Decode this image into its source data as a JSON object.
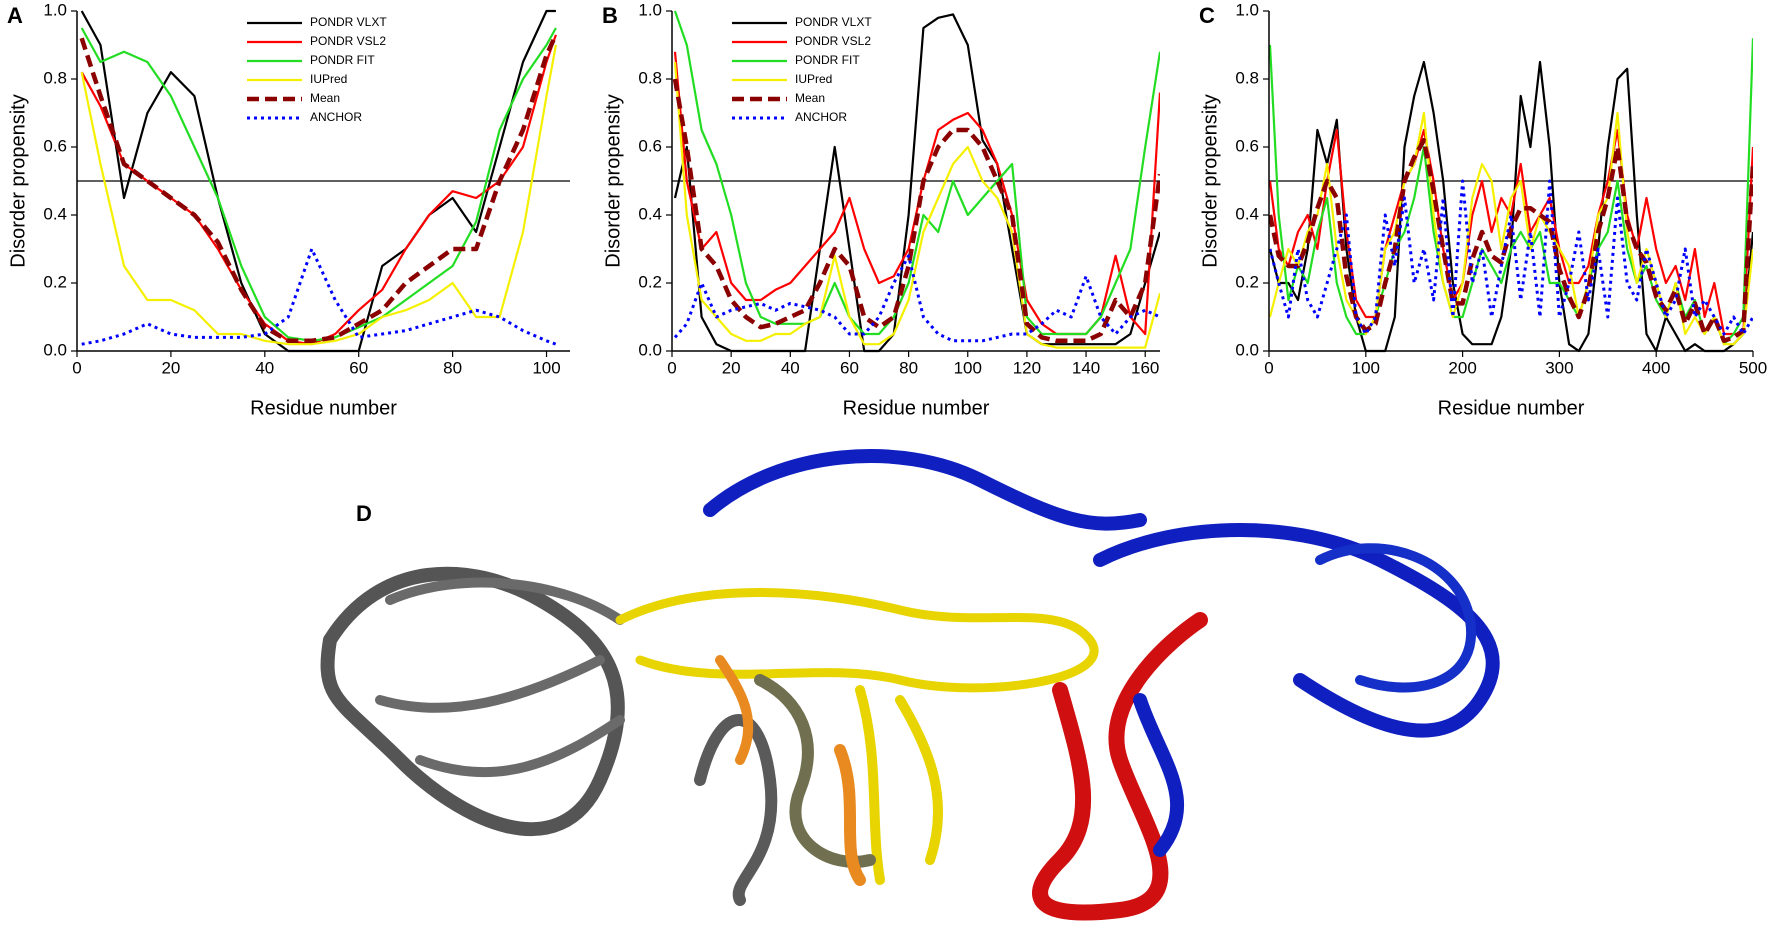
{
  "chart_data": [
    {
      "type": "line",
      "label": "A",
      "x_label": "Residue number",
      "y_label": "Disorder propensity",
      "xlim": [
        0,
        105
      ],
      "ylim": [
        0,
        1
      ],
      "xticks": [
        0,
        20,
        40,
        60,
        80,
        100
      ],
      "yticks": [
        {
          "value": 0,
          "label": "0.0"
        },
        0.2,
        0.4,
        0.6,
        0.8,
        {
          "value": 1,
          "label": "1.0"
        }
      ],
      "threshold": 0.5,
      "legend": "upper center",
      "x": [
        1,
        5,
        10,
        15,
        20,
        25,
        30,
        35,
        40,
        45,
        50,
        55,
        60,
        65,
        70,
        75,
        80,
        85,
        90,
        95,
        100,
        102
      ],
      "series": [
        {
          "name": "PONDR VLXT",
          "color": "#000000",
          "line_style": "solid",
          "values": [
            1.0,
            0.9,
            0.45,
            0.7,
            0.82,
            0.75,
            0.45,
            0.2,
            0.05,
            0.0,
            0.0,
            0.0,
            0.0,
            0.25,
            0.3,
            0.4,
            0.45,
            0.35,
            0.6,
            0.85,
            1.0,
            1.0
          ]
        },
        {
          "name": "PONDR VSL2",
          "color": "#ff0000",
          "line_style": "solid",
          "values": [
            0.82,
            0.72,
            0.55,
            0.5,
            0.45,
            0.4,
            0.3,
            0.18,
            0.08,
            0.03,
            0.02,
            0.05,
            0.12,
            0.18,
            0.3,
            0.4,
            0.47,
            0.45,
            0.5,
            0.6,
            0.85,
            0.93
          ]
        },
        {
          "name": "PONDR FIT",
          "color": "#22dd22",
          "line_style": "solid",
          "values": [
            0.95,
            0.85,
            0.88,
            0.85,
            0.75,
            0.6,
            0.45,
            0.25,
            0.1,
            0.04,
            0.03,
            0.04,
            0.07,
            0.1,
            0.15,
            0.2,
            0.25,
            0.38,
            0.65,
            0.8,
            0.9,
            0.95
          ]
        },
        {
          "name": "IUPred",
          "color": "#f5f000",
          "line_style": "solid",
          "values": [
            0.82,
            0.55,
            0.25,
            0.15,
            0.15,
            0.12,
            0.05,
            0.05,
            0.03,
            0.02,
            0.02,
            0.03,
            0.05,
            0.1,
            0.12,
            0.15,
            0.2,
            0.1,
            0.1,
            0.35,
            0.75,
            0.9
          ]
        },
        {
          "name": "Mean",
          "color": "#8b0000",
          "line_style": "dashed",
          "values": [
            0.92,
            0.75,
            0.55,
            0.5,
            0.45,
            0.4,
            0.32,
            0.18,
            0.07,
            0.03,
            0.03,
            0.04,
            0.08,
            0.12,
            0.2,
            0.25,
            0.3,
            0.3,
            0.5,
            0.65,
            0.87,
            0.93
          ]
        },
        {
          "name": "ANCHOR",
          "color": "#0000ff",
          "line_style": "dotted",
          "values": [
            0.02,
            0.03,
            0.05,
            0.08,
            0.05,
            0.04,
            0.04,
            0.04,
            0.05,
            0.1,
            0.3,
            0.15,
            0.04,
            0.05,
            0.06,
            0.08,
            0.1,
            0.12,
            0.1,
            0.06,
            0.03,
            0.02
          ]
        }
      ]
    },
    {
      "type": "line",
      "label": "B",
      "x_label": "Residue number",
      "y_label": "Disorder propensity",
      "xlim": [
        0,
        165
      ],
      "ylim": [
        0,
        1
      ],
      "xticks": [
        0,
        20,
        40,
        60,
        80,
        100,
        120,
        140,
        160
      ],
      "yticks": [
        {
          "value": 0,
          "label": "0.0"
        },
        0.2,
        0.4,
        0.6,
        0.8,
        {
          "value": 1,
          "label": "1.0"
        }
      ],
      "threshold": 0.5,
      "legend": "upper left",
      "x": [
        1,
        5,
        10,
        15,
        20,
        25,
        30,
        35,
        40,
        45,
        50,
        55,
        60,
        65,
        70,
        75,
        80,
        85,
        90,
        95,
        100,
        105,
        110,
        115,
        120,
        125,
        130,
        135,
        140,
        145,
        150,
        155,
        160,
        165
      ],
      "series": [
        {
          "name": "PONDR VLXT",
          "color": "#000000",
          "line_style": "solid",
          "values": [
            0.45,
            0.6,
            0.1,
            0.02,
            0.0,
            0.0,
            0.0,
            0.0,
            0.0,
            0.0,
            0.3,
            0.6,
            0.3,
            0.0,
            0.0,
            0.05,
            0.4,
            0.95,
            0.98,
            0.99,
            0.9,
            0.62,
            0.55,
            0.3,
            0.05,
            0.02,
            0.02,
            0.02,
            0.02,
            0.02,
            0.02,
            0.05,
            0.2,
            0.35
          ]
        },
        {
          "name": "PONDR VSL2",
          "color": "#ff0000",
          "line_style": "solid",
          "values": [
            0.88,
            0.5,
            0.3,
            0.35,
            0.2,
            0.15,
            0.15,
            0.18,
            0.2,
            0.25,
            0.3,
            0.35,
            0.45,
            0.3,
            0.2,
            0.22,
            0.3,
            0.5,
            0.65,
            0.68,
            0.7,
            0.65,
            0.55,
            0.4,
            0.15,
            0.08,
            0.05,
            0.05,
            0.05,
            0.1,
            0.28,
            0.1,
            0.05,
            0.76
          ]
        },
        {
          "name": "PONDR FIT",
          "color": "#22dd22",
          "line_style": "solid",
          "values": [
            1.0,
            0.9,
            0.65,
            0.55,
            0.4,
            0.2,
            0.1,
            0.08,
            0.08,
            0.08,
            0.1,
            0.2,
            0.1,
            0.05,
            0.05,
            0.1,
            0.2,
            0.4,
            0.35,
            0.5,
            0.4,
            0.45,
            0.5,
            0.55,
            0.1,
            0.05,
            0.05,
            0.05,
            0.05,
            0.1,
            0.2,
            0.3,
            0.6,
            0.88
          ]
        },
        {
          "name": "IUPred",
          "color": "#f5f000",
          "line_style": "solid",
          "values": [
            0.85,
            0.4,
            0.15,
            0.1,
            0.05,
            0.03,
            0.03,
            0.05,
            0.05,
            0.08,
            0.1,
            0.28,
            0.1,
            0.02,
            0.02,
            0.05,
            0.15,
            0.35,
            0.45,
            0.55,
            0.6,
            0.5,
            0.45,
            0.35,
            0.05,
            0.02,
            0.01,
            0.01,
            0.01,
            0.01,
            0.01,
            0.01,
            0.01,
            0.17
          ]
        },
        {
          "name": "Mean",
          "color": "#8b0000",
          "line_style": "dashed",
          "values": [
            0.8,
            0.6,
            0.3,
            0.25,
            0.15,
            0.1,
            0.07,
            0.08,
            0.1,
            0.12,
            0.2,
            0.3,
            0.25,
            0.1,
            0.07,
            0.1,
            0.25,
            0.5,
            0.6,
            0.65,
            0.65,
            0.6,
            0.5,
            0.4,
            0.08,
            0.04,
            0.03,
            0.03,
            0.03,
            0.05,
            0.15,
            0.1,
            0.2,
            0.52
          ]
        },
        {
          "name": "ANCHOR",
          "color": "#0000ff",
          "line_style": "dotted",
          "values": [
            0.04,
            0.08,
            0.2,
            0.1,
            0.12,
            0.13,
            0.14,
            0.12,
            0.14,
            0.13,
            0.12,
            0.1,
            0.05,
            0.05,
            0.1,
            0.2,
            0.28,
            0.1,
            0.05,
            0.03,
            0.03,
            0.03,
            0.04,
            0.05,
            0.05,
            0.08,
            0.12,
            0.1,
            0.22,
            0.1,
            0.05,
            0.1,
            0.12,
            0.1
          ]
        }
      ]
    },
    {
      "type": "line",
      "label": "C",
      "x_label": "Residue number",
      "y_label": "Disorder propensity",
      "xlim": [
        0,
        500
      ],
      "ylim": [
        0,
        1
      ],
      "xticks": [
        0,
        100,
        200,
        300,
        400,
        500
      ],
      "yticks": [
        {
          "value": 0,
          "label": "0.0"
        },
        0.2,
        0.4,
        0.6,
        0.8,
        {
          "value": 1,
          "label": "1.0"
        }
      ],
      "threshold": 0.5,
      "x": [
        1,
        10,
        20,
        30,
        40,
        50,
        60,
        70,
        80,
        90,
        100,
        110,
        120,
        130,
        140,
        150,
        160,
        170,
        180,
        190,
        200,
        210,
        220,
        230,
        240,
        250,
        260,
        270,
        280,
        290,
        300,
        310,
        320,
        330,
        340,
        350,
        360,
        370,
        380,
        390,
        400,
        410,
        420,
        430,
        440,
        450,
        460,
        470,
        480,
        490,
        500
      ],
      "series": [
        {
          "color": "#000000",
          "line_style": "solid",
          "values": [
            0.3,
            0.2,
            0.2,
            0.15,
            0.3,
            0.65,
            0.55,
            0.68,
            0.3,
            0.1,
            0.0,
            0.0,
            0.0,
            0.1,
            0.6,
            0.75,
            0.85,
            0.7,
            0.5,
            0.2,
            0.05,
            0.02,
            0.02,
            0.02,
            0.1,
            0.3,
            0.75,
            0.6,
            0.85,
            0.6,
            0.2,
            0.02,
            0.0,
            0.05,
            0.3,
            0.6,
            0.8,
            0.83,
            0.4,
            0.05,
            0.0,
            0.1,
            0.05,
            0.0,
            0.02,
            0.0,
            0.0,
            0.0,
            0.02,
            0.05,
            0.35
          ]
        },
        {
          "color": "#ff0000",
          "line_style": "solid",
          "values": [
            0.5,
            0.3,
            0.25,
            0.35,
            0.4,
            0.3,
            0.5,
            0.65,
            0.35,
            0.15,
            0.1,
            0.1,
            0.3,
            0.4,
            0.5,
            0.55,
            0.65,
            0.5,
            0.3,
            0.15,
            0.2,
            0.4,
            0.5,
            0.35,
            0.45,
            0.4,
            0.55,
            0.35,
            0.4,
            0.45,
            0.3,
            0.2,
            0.2,
            0.25,
            0.4,
            0.5,
            0.65,
            0.4,
            0.3,
            0.45,
            0.3,
            0.2,
            0.25,
            0.15,
            0.3,
            0.1,
            0.2,
            0.05,
            0.05,
            0.05,
            0.6
          ]
        },
        {
          "color": "#22dd22",
          "line_style": "solid",
          "values": [
            0.9,
            0.4,
            0.15,
            0.25,
            0.2,
            0.35,
            0.45,
            0.2,
            0.1,
            0.05,
            0.05,
            0.1,
            0.2,
            0.3,
            0.35,
            0.45,
            0.6,
            0.35,
            0.2,
            0.1,
            0.1,
            0.2,
            0.3,
            0.25,
            0.2,
            0.3,
            0.35,
            0.3,
            0.35,
            0.2,
            0.2,
            0.15,
            0.1,
            0.2,
            0.3,
            0.35,
            0.5,
            0.3,
            0.2,
            0.25,
            0.15,
            0.1,
            0.2,
            0.1,
            0.15,
            0.05,
            0.1,
            0.02,
            0.05,
            0.1,
            0.92
          ]
        },
        {
          "color": "#f5f000",
          "line_style": "solid",
          "values": [
            0.1,
            0.2,
            0.3,
            0.25,
            0.35,
            0.4,
            0.55,
            0.3,
            0.15,
            0.1,
            0.05,
            0.1,
            0.3,
            0.35,
            0.5,
            0.55,
            0.7,
            0.4,
            0.2,
            0.1,
            0.2,
            0.45,
            0.55,
            0.5,
            0.3,
            0.45,
            0.5,
            0.3,
            0.4,
            0.35,
            0.3,
            0.25,
            0.1,
            0.2,
            0.4,
            0.45,
            0.7,
            0.35,
            0.2,
            0.3,
            0.2,
            0.1,
            0.2,
            0.05,
            0.1,
            0.05,
            0.1,
            0.02,
            0.02,
            0.05,
            0.3
          ]
        },
        {
          "color": "#8b0000",
          "line_style": "dashed",
          "values": [
            0.4,
            0.28,
            0.25,
            0.25,
            0.32,
            0.42,
            0.5,
            0.45,
            0.22,
            0.1,
            0.06,
            0.08,
            0.2,
            0.3,
            0.5,
            0.57,
            0.62,
            0.47,
            0.3,
            0.14,
            0.14,
            0.27,
            0.35,
            0.28,
            0.26,
            0.36,
            0.42,
            0.42,
            0.4,
            0.38,
            0.24,
            0.16,
            0.1,
            0.18,
            0.35,
            0.45,
            0.6,
            0.38,
            0.3,
            0.26,
            0.16,
            0.12,
            0.18,
            0.08,
            0.14,
            0.05,
            0.1,
            0.03,
            0.04,
            0.06,
            0.55
          ]
        },
        {
          "color": "#0000ff",
          "line_style": "dotted",
          "values": [
            0.3,
            0.2,
            0.1,
            0.3,
            0.15,
            0.1,
            0.2,
            0.3,
            0.4,
            0.1,
            0.05,
            0.1,
            0.4,
            0.25,
            0.45,
            0.2,
            0.3,
            0.15,
            0.45,
            0.1,
            0.5,
            0.2,
            0.3,
            0.1,
            0.25,
            0.4,
            0.15,
            0.35,
            0.1,
            0.5,
            0.1,
            0.2,
            0.35,
            0.15,
            0.3,
            0.1,
            0.45,
            0.2,
            0.15,
            0.3,
            0.2,
            0.1,
            0.15,
            0.3,
            0.1,
            0.15,
            0.1,
            0.05,
            0.1,
            0.05,
            0.1
          ]
        }
      ]
    }
  ],
  "structure": {
    "label": "D"
  }
}
